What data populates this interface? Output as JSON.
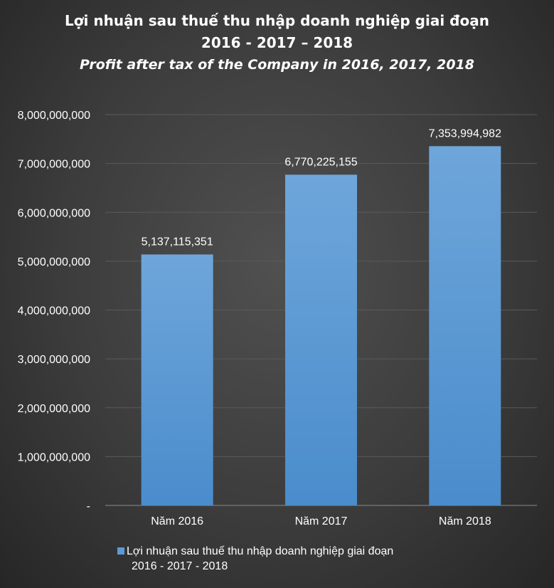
{
  "chart_data": {
    "type": "bar",
    "title": "Lợi nhuận sau thuế thu nhập doanh nghiệp giai đoạn",
    "title_years": "2016 - 2017 – 2018",
    "subtitle": "Profit after tax of the Company in 2016, 2017, 2018",
    "categories": [
      "Năm 2016",
      "Năm 2017",
      "Năm 2018"
    ],
    "series": [
      {
        "name": "Lợi nhuận sau thuế thu nhập doanh nghiệp giai đoạn 2016 - 2017 - 2018",
        "name_line1": "Lợi nhuận sau thuế thu nhập doanh nghiệp giai đoạn",
        "name_line2": "2016 - 2017 - 2018",
        "values": [
          5137115351,
          6770225155,
          7353994982
        ],
        "value_labels": [
          "5,137,115,351",
          "6,770,225,155",
          "7,353,994,982"
        ],
        "color": "#5b9bd5"
      }
    ],
    "ylim": [
      0,
      8000000000
    ],
    "y_ticks": [
      0,
      1000000000,
      2000000000,
      3000000000,
      4000000000,
      5000000000,
      6000000000,
      7000000000,
      8000000000
    ],
    "y_tick_labels": [
      "-",
      "1,000,000,000",
      "2,000,000,000",
      "3,000,000,000",
      "4,000,000,000",
      "5,000,000,000",
      "6,000,000,000",
      "7,000,000,000",
      "8,000,000,000"
    ],
    "xlabel": "",
    "ylabel": "",
    "grid": true,
    "legend_position": "bottom",
    "colors": {
      "background": "#404040",
      "bar": "#5b9bd5",
      "grid": "#5a5a5a",
      "text": "#ffffff"
    }
  }
}
